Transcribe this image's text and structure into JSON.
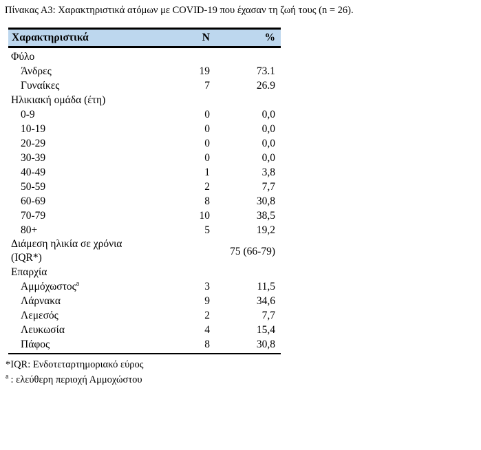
{
  "title": "Πίνακας Α3: Χαρακτηριστικά ατόμων με COVID-19 που έχασαν τη ζωή τους (n = 26).",
  "colors": {
    "header_bg": "#BDD7EE",
    "border": "#000000",
    "text": "#000000"
  },
  "table": {
    "columns": {
      "characteristic": "Χαρακτηριστικά",
      "n": "N",
      "pct": "%"
    },
    "rows": [
      {
        "type": "section",
        "label": "Φύλο",
        "n": "",
        "pct": ""
      },
      {
        "type": "item",
        "label": "Άνδρες",
        "n": "19",
        "pct": "73.1"
      },
      {
        "type": "item",
        "label": "Γυναίκες",
        "n": "7",
        "pct": "26.9"
      },
      {
        "type": "section",
        "label": "Ηλικιακή ομάδα (έτη)",
        "n": "",
        "pct": ""
      },
      {
        "type": "item",
        "label": "0-9",
        "n": "0",
        "pct": "0,0"
      },
      {
        "type": "item",
        "label": "10-19",
        "n": "0",
        "pct": "0,0"
      },
      {
        "type": "item",
        "label": "20-29",
        "n": "0",
        "pct": "0,0"
      },
      {
        "type": "item",
        "label": "30-39",
        "n": "0",
        "pct": "0,0"
      },
      {
        "type": "item",
        "label": "40-49",
        "n": "1",
        "pct": "3,8"
      },
      {
        "type": "item",
        "label": "50-59",
        "n": "2",
        "pct": "7,7"
      },
      {
        "type": "item",
        "label": "60-69",
        "n": "8",
        "pct": "30,8"
      },
      {
        "type": "item",
        "label": "70-79",
        "n": "10",
        "pct": "38,5"
      },
      {
        "type": "item",
        "label": "80+",
        "n": "5",
        "pct": "19,2"
      },
      {
        "type": "median",
        "label_lines": [
          "Διάμεση ηλικία σε χρόνια",
          "(IQR*)"
        ],
        "value": "75 (66-79)"
      },
      {
        "type": "section",
        "label": "Επαρχία",
        "n": "",
        "pct": ""
      },
      {
        "type": "item",
        "label": "Αμμόχωστος",
        "sup": "a",
        "n": "3",
        "pct": "11,5"
      },
      {
        "type": "item",
        "label": "Λάρνακα",
        "n": "9",
        "pct": "34,6"
      },
      {
        "type": "item",
        "label": "Λεμεσός",
        "n": "2",
        "pct": "7,7"
      },
      {
        "type": "item",
        "label": "Λευκωσία",
        "n": "4",
        "pct": "15,4"
      },
      {
        "type": "item",
        "label": "Πάφος",
        "n": "8",
        "pct": "30,8"
      }
    ]
  },
  "footnotes": [
    {
      "marker": "*",
      "superscript": false,
      "text": "IQR: Ενδοτεταρτημοριακό εύρος"
    },
    {
      "marker": "a",
      "superscript": true,
      "text": ": ελεύθερη περιοχή Αμμοχώστου"
    }
  ]
}
